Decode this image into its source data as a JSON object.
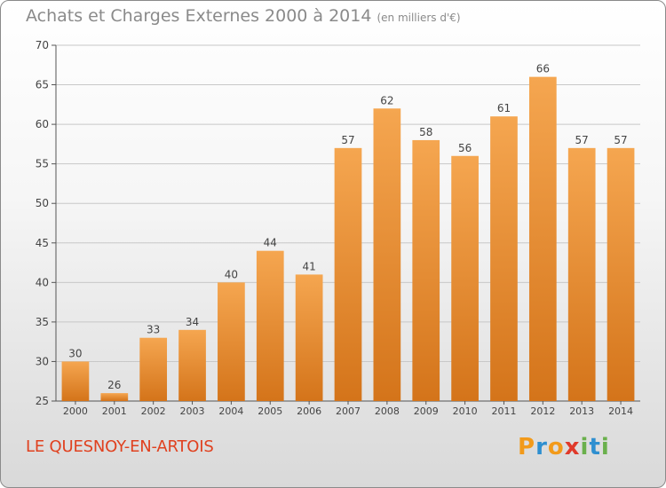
{
  "title": "Achats et Charges Externes 2000 à 2014",
  "unit": "(en milliers d'€)",
  "commune": "LE QUESNOY-EN-ARTOIS",
  "logo": {
    "text": "Proxiti",
    "letters": [
      {
        "char": "P",
        "color": "#f29a1a"
      },
      {
        "char": "r",
        "color": "#2e8fd0"
      },
      {
        "char": "o",
        "color": "#f29a1a"
      },
      {
        "char": "x",
        "color": "#e03a2a"
      },
      {
        "char": "i",
        "color": "#6ab04c"
      },
      {
        "char": "t",
        "color": "#2e8fd0"
      },
      {
        "char": "i",
        "color": "#6ab04c"
      }
    ]
  },
  "colors": {
    "bar_top": "#f5a650",
    "bar_bottom": "#d4741a",
    "axis": "#555555",
    "grid": "#c8c8c8",
    "text": "#444444"
  },
  "chart_data": {
    "type": "bar",
    "categories": [
      "2000",
      "2001",
      "2002",
      "2003",
      "2004",
      "2005",
      "2006",
      "2007",
      "2008",
      "2009",
      "2010",
      "2011",
      "2012",
      "2013",
      "2014"
    ],
    "values": [
      30,
      26,
      33,
      34,
      40,
      44,
      41,
      57,
      62,
      58,
      56,
      61,
      66,
      57,
      57
    ],
    "ylim": [
      25,
      70
    ],
    "yticks": [
      25,
      30,
      35,
      40,
      45,
      50,
      55,
      60,
      65,
      70
    ],
    "grid": true
  }
}
